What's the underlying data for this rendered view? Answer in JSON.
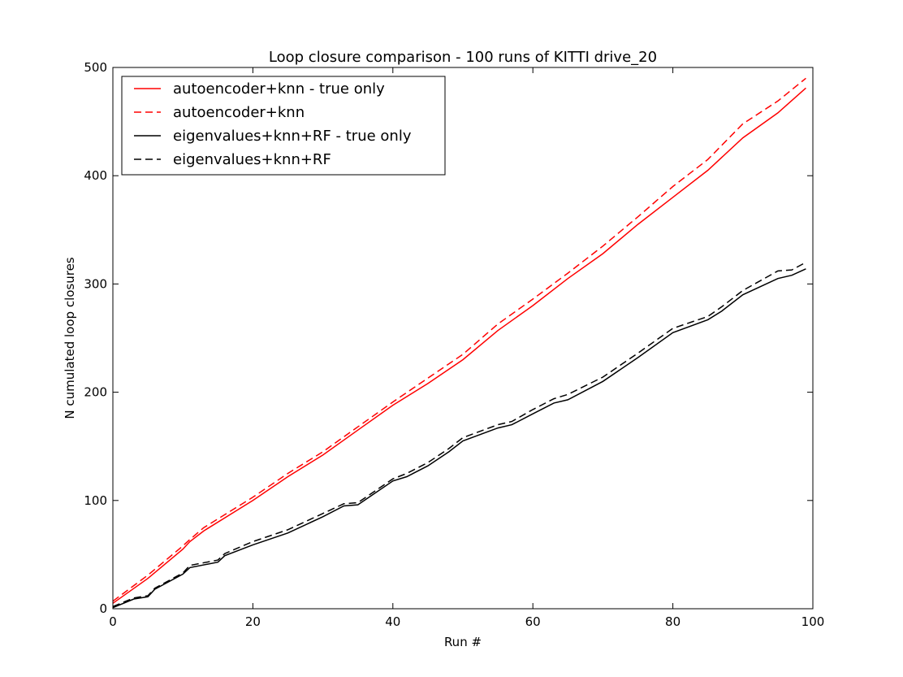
{
  "chart_data": {
    "type": "line",
    "title": "Loop closure comparison - 100 runs of KITTI drive_20",
    "xlabel": "Run #",
    "ylabel": "N cumulated loop closures",
    "xlim": [
      0,
      100
    ],
    "ylim": [
      0,
      500
    ],
    "xticks": [
      0,
      20,
      40,
      60,
      80,
      100
    ],
    "yticks": [
      0,
      100,
      200,
      300,
      400,
      500
    ],
    "grid": false,
    "legend_position": "top-left",
    "series": [
      {
        "name": "autoencoder+knn - true only",
        "color": "#ff0000",
        "dash": "solid",
        "points": [
          [
            0,
            5
          ],
          [
            5,
            28
          ],
          [
            10,
            55
          ],
          [
            11,
            62
          ],
          [
            13,
            72
          ],
          [
            20,
            100
          ],
          [
            25,
            122
          ],
          [
            30,
            142
          ],
          [
            35,
            165
          ],
          [
            40,
            188
          ],
          [
            45,
            208
          ],
          [
            50,
            230
          ],
          [
            55,
            257
          ],
          [
            60,
            280
          ],
          [
            65,
            305
          ],
          [
            70,
            328
          ],
          [
            75,
            355
          ],
          [
            80,
            380
          ],
          [
            85,
            405
          ],
          [
            90,
            435
          ],
          [
            95,
            458
          ],
          [
            99,
            481
          ]
        ]
      },
      {
        "name": "autoencoder+knn",
        "color": "#ff0000",
        "dash": "dashed",
        "points": [
          [
            0,
            7
          ],
          [
            5,
            31
          ],
          [
            10,
            58
          ],
          [
            11,
            64
          ],
          [
            13,
            75
          ],
          [
            20,
            103
          ],
          [
            25,
            125
          ],
          [
            30,
            145
          ],
          [
            35,
            168
          ],
          [
            40,
            191
          ],
          [
            45,
            213
          ],
          [
            50,
            235
          ],
          [
            55,
            263
          ],
          [
            60,
            286
          ],
          [
            65,
            310
          ],
          [
            70,
            335
          ],
          [
            75,
            362
          ],
          [
            80,
            390
          ],
          [
            85,
            415
          ],
          [
            90,
            448
          ],
          [
            95,
            469
          ],
          [
            99,
            490
          ]
        ]
      },
      {
        "name": "eigenvalues+knn+RF - true only",
        "color": "#000000",
        "dash": "solid",
        "points": [
          [
            0,
            1
          ],
          [
            3,
            9
          ],
          [
            5,
            11
          ],
          [
            6,
            18
          ],
          [
            10,
            32
          ],
          [
            11,
            38
          ],
          [
            15,
            43
          ],
          [
            16,
            49
          ],
          [
            20,
            59
          ],
          [
            25,
            70
          ],
          [
            30,
            85
          ],
          [
            33,
            95
          ],
          [
            35,
            96
          ],
          [
            40,
            118
          ],
          [
            42,
            122
          ],
          [
            45,
            132
          ],
          [
            48,
            145
          ],
          [
            50,
            155
          ],
          [
            55,
            167
          ],
          [
            57,
            170
          ],
          [
            60,
            180
          ],
          [
            63,
            190
          ],
          [
            65,
            193
          ],
          [
            70,
            210
          ],
          [
            75,
            232
          ],
          [
            80,
            255
          ],
          [
            85,
            267
          ],
          [
            87,
            275
          ],
          [
            90,
            290
          ],
          [
            95,
            305
          ],
          [
            97,
            308
          ],
          [
            99,
            314
          ]
        ]
      },
      {
        "name": "eigenvalues+knn+RF",
        "color": "#000000",
        "dash": "dashed",
        "points": [
          [
            0,
            2
          ],
          [
            3,
            10
          ],
          [
            5,
            12
          ],
          [
            6,
            19
          ],
          [
            10,
            33
          ],
          [
            11,
            40
          ],
          [
            15,
            45
          ],
          [
            16,
            51
          ],
          [
            20,
            62
          ],
          [
            25,
            73
          ],
          [
            30,
            88
          ],
          [
            33,
            97
          ],
          [
            35,
            98
          ],
          [
            40,
            120
          ],
          [
            42,
            125
          ],
          [
            45,
            135
          ],
          [
            48,
            148
          ],
          [
            50,
            158
          ],
          [
            55,
            170
          ],
          [
            57,
            173
          ],
          [
            60,
            184
          ],
          [
            63,
            194
          ],
          [
            65,
            198
          ],
          [
            70,
            214
          ],
          [
            75,
            236
          ],
          [
            80,
            259
          ],
          [
            85,
            270
          ],
          [
            87,
            279
          ],
          [
            90,
            294
          ],
          [
            95,
            312
          ],
          [
            97,
            313
          ],
          [
            99,
            320
          ]
        ]
      }
    ]
  }
}
